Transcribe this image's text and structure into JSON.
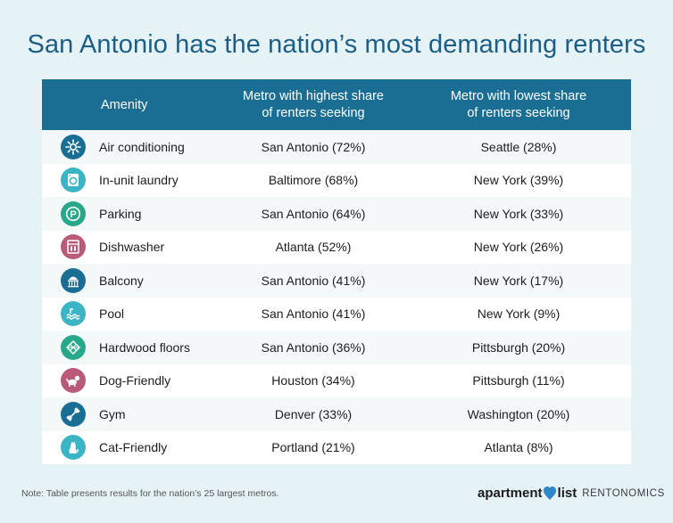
{
  "title": "San Antonio has the nation’s most demanding renters",
  "columns": [
    "Amenity",
    "Metro with highest share of renters seeking",
    "Metro with lowest share of renters seeking"
  ],
  "column_lines": {
    "highest": [
      "Metro with highest share",
      "of renters seeking"
    ],
    "lowest": [
      "Metro with lowest share",
      "of renters seeking"
    ]
  },
  "rows": [
    {
      "amenity": "Air conditioning",
      "highest": "San Antonio (72%)",
      "lowest": "Seattle (28%)",
      "icon": "snowflake-icon",
      "color": "#1a6e93"
    },
    {
      "amenity": "In-unit laundry",
      "highest": "Baltimore (68%)",
      "lowest": "New York (39%)",
      "icon": "washing-machine-icon",
      "color": "#3bb5c6"
    },
    {
      "amenity": "Parking",
      "highest": "San Antonio (64%)",
      "lowest": "New York (33%)",
      "icon": "parking-icon",
      "color": "#27a88a"
    },
    {
      "amenity": "Dishwasher",
      "highest": "Atlanta (52%)",
      "lowest": "New York (26%)",
      "icon": "dishwasher-icon",
      "color": "#b85a78"
    },
    {
      "amenity": "Balcony",
      "highest": "San Antonio (41%)",
      "lowest": "New York (17%)",
      "icon": "balcony-icon",
      "color": "#1a6e93"
    },
    {
      "amenity": "Pool",
      "highest": "San Antonio (41%)",
      "lowest": "New York (9%)",
      "icon": "pool-icon",
      "color": "#3bb5c6"
    },
    {
      "amenity": "Hardwood floors",
      "highest": "San Antonio (36%)",
      "lowest": "Pittsburgh (20%)",
      "icon": "hardwood-floor-icon",
      "color": "#27a88a"
    },
    {
      "amenity": "Dog-Friendly",
      "highest": "Houston (34%)",
      "lowest": "Pittsburgh (11%)",
      "icon": "dog-icon",
      "color": "#b85a78"
    },
    {
      "amenity": "Gym",
      "highest": "Denver (33%)",
      "lowest": "Washington (20%)",
      "icon": "dumbbell-icon",
      "color": "#1a6e93"
    },
    {
      "amenity": "Cat-Friendly",
      "highest": "Portland (21%)",
      "lowest": "Atlanta (8%)",
      "icon": "cat-icon",
      "color": "#3bb5c6"
    }
  ],
  "note": "Note: Table presents results for the nation’s 25 largest metros.",
  "logo": {
    "brand_a": "apartment",
    "brand_b": "list",
    "sub": "RENTONOMICS",
    "pin_color": "#2f86c8"
  },
  "chart_data": {
    "type": "table",
    "title": "San Antonio has the nation’s most demanding renters",
    "columns": [
      "Amenity",
      "Metro with highest share of renters seeking",
      "Metro with lowest share of renters seeking"
    ],
    "rows": [
      [
        "Air conditioning",
        "San Antonio (72%)",
        "Seattle (28%)"
      ],
      [
        "In-unit laundry",
        "Baltimore (68%)",
        "New York (39%)"
      ],
      [
        "Parking",
        "San Antonio (64%)",
        "New York (33%)"
      ],
      [
        "Dishwasher",
        "Atlanta (52%)",
        "New York (26%)"
      ],
      [
        "Balcony",
        "San Antonio (41%)",
        "New York (17%)"
      ],
      [
        "Pool",
        "San Antonio (41%)",
        "New York (9%)"
      ],
      [
        "Hardwood floors",
        "San Antonio (36%)",
        "Pittsburgh (20%)"
      ],
      [
        "Dog-Friendly",
        "Houston (34%)",
        "Pittsburgh (11%)"
      ],
      [
        "Gym",
        "Denver (33%)",
        "Washington (20%)"
      ],
      [
        "Cat-Friendly",
        "Portland (21%)",
        "Atlanta (8%)"
      ]
    ]
  }
}
